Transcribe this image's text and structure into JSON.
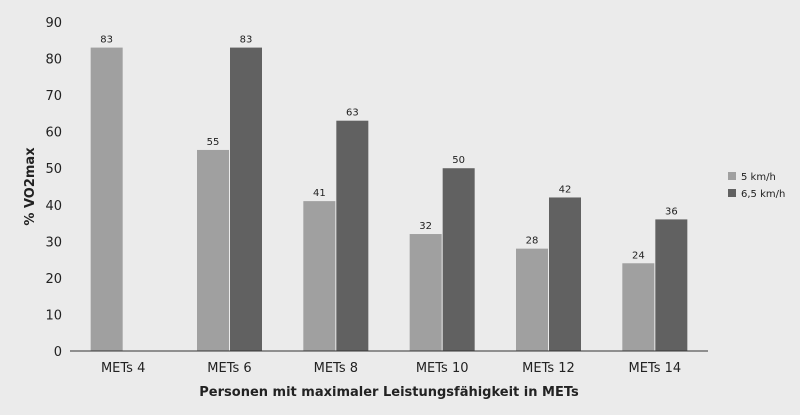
{
  "chart_data": {
    "type": "bar",
    "title": "",
    "xlabel": "Personen mit maximaler Leistungsfähigkeit in METs",
    "ylabel": "% VO2max",
    "ylim": [
      0,
      90
    ],
    "yticks": [
      0,
      10,
      20,
      30,
      40,
      50,
      60,
      70,
      80,
      90
    ],
    "categories": [
      "METs 4",
      "METs 6",
      "METs 8",
      "METs 10",
      "METs 12",
      "METs 14"
    ],
    "series": [
      {
        "name": "5 km/h",
        "color": "#a0a0a0",
        "values": [
          83,
          55,
          41,
          32,
          28,
          24
        ]
      },
      {
        "name": "6,5 km/h",
        "color": "#616161",
        "values": [
          null,
          83,
          63,
          50,
          42,
          36
        ]
      }
    ],
    "legend_position": "right",
    "grid": false
  }
}
